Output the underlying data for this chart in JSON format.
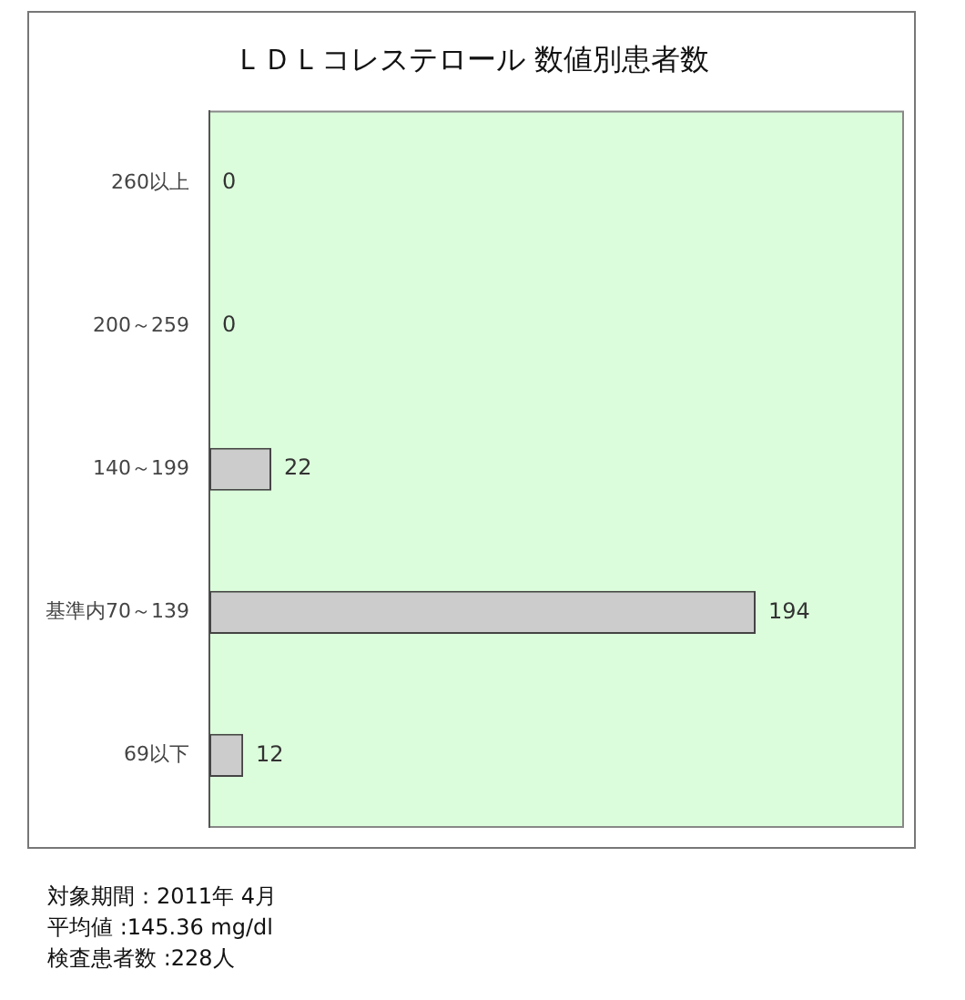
{
  "chart_data": {
    "type": "bar",
    "orientation": "horizontal",
    "title": "ＬＤＬコレステロール 数値別患者数",
    "categories": [
      "260以上",
      "200～259",
      "140～199",
      "基準内70～139",
      "69以下"
    ],
    "values": [
      0,
      0,
      22,
      194,
      12
    ],
    "color": "#cccccc",
    "data_labels": true,
    "grid": false,
    "legend": false,
    "annotations": [
      "対象期間：2011年 4月",
      "平均値 :145.36 mg/dl",
      "検査患者数 :228人"
    ]
  }
}
